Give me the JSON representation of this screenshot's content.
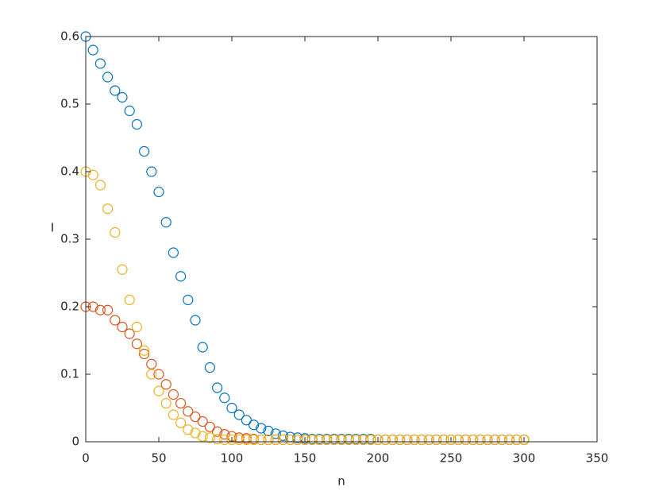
{
  "chart_data": {
    "type": "scatter",
    "xlabel": "n",
    "ylabel": "I",
    "xlim": [
      0,
      350
    ],
    "xticks": [
      0,
      50,
      100,
      150,
      200,
      250,
      300,
      350
    ],
    "ylim": [
      0,
      0.6
    ],
    "yticks": [
      0,
      0.1,
      0.2,
      0.3,
      0.4,
      0.5,
      0.6
    ],
    "box": true,
    "x": [
      0,
      5,
      10,
      15,
      20,
      25,
      30,
      35,
      40,
      45,
      50,
      55,
      60,
      65,
      70,
      75,
      80,
      85,
      90,
      95,
      100,
      105,
      110,
      115,
      120,
      125,
      130,
      135,
      140,
      145,
      150,
      155,
      160,
      165,
      170,
      175,
      180,
      185,
      190,
      195,
      200,
      205,
      210,
      215,
      220,
      225,
      230,
      235,
      240,
      245,
      250,
      255,
      260,
      265,
      270,
      275,
      280,
      285,
      290,
      295,
      300
    ],
    "series": [
      {
        "color": "#0072BD",
        "values": [
          0.6,
          0.58,
          0.56,
          0.54,
          0.52,
          0.51,
          0.49,
          0.47,
          0.43,
          0.4,
          0.37,
          0.325,
          0.28,
          0.245,
          0.21,
          0.18,
          0.14,
          0.11,
          0.08,
          0.065,
          0.05,
          0.04,
          0.032,
          0.025,
          0.02,
          0.016,
          0.012,
          0.009,
          0.007,
          0.006,
          0.005,
          0.004,
          0.004,
          0.004,
          0.004,
          0.004,
          0.004,
          0.004,
          0.004,
          0.004,
          0.003,
          0.003,
          0.003,
          0.003,
          0.003,
          0.003,
          0.003,
          0.003,
          0.003,
          0.003,
          0.003,
          0.003,
          0.003,
          0.003,
          0.003,
          0.003,
          0.003,
          0.003,
          0.003,
          0.003,
          0.003
        ]
      },
      {
        "color": "#D95319",
        "values": [
          0.2,
          0.2,
          0.195,
          0.195,
          0.18,
          0.17,
          0.16,
          0.145,
          0.13,
          0.115,
          0.1,
          0.085,
          0.07,
          0.057,
          0.045,
          0.037,
          0.03,
          0.022,
          0.015,
          0.011,
          0.008,
          0.006,
          0.005,
          0.004,
          0.003,
          0.003,
          0.003,
          0.003,
          0.003,
          0.003,
          0.003,
          0.003,
          0.003,
          0.003,
          0.003,
          0.003,
          0.003,
          0.003,
          0.003,
          0.003,
          0.003,
          0.003,
          0.003,
          0.003,
          0.003,
          0.003,
          0.003,
          0.003,
          0.003,
          0.003,
          0.003,
          0.003,
          0.003,
          0.003,
          0.003,
          0.003,
          0.003,
          0.003,
          0.003,
          0.003,
          0.003
        ]
      },
      {
        "color": "#EDB120",
        "values": [
          0.4,
          0.395,
          0.38,
          0.345,
          0.31,
          0.255,
          0.21,
          0.17,
          0.135,
          0.1,
          0.075,
          0.057,
          0.04,
          0.028,
          0.018,
          0.013,
          0.008,
          0.006,
          0.004,
          0.003,
          0.003,
          0.003,
          0.003,
          0.003,
          0.003,
          0.003,
          0.003,
          0.003,
          0.003,
          0.003,
          0.003,
          0.003,
          0.003,
          0.003,
          0.003,
          0.003,
          0.003,
          0.003,
          0.003,
          0.003,
          0.003,
          0.003,
          0.003,
          0.003,
          0.003,
          0.003,
          0.003,
          0.003,
          0.003,
          0.003,
          0.003,
          0.003,
          0.003,
          0.003,
          0.003,
          0.003,
          0.003,
          0.003,
          0.003,
          0.003,
          0.003
        ]
      }
    ]
  }
}
